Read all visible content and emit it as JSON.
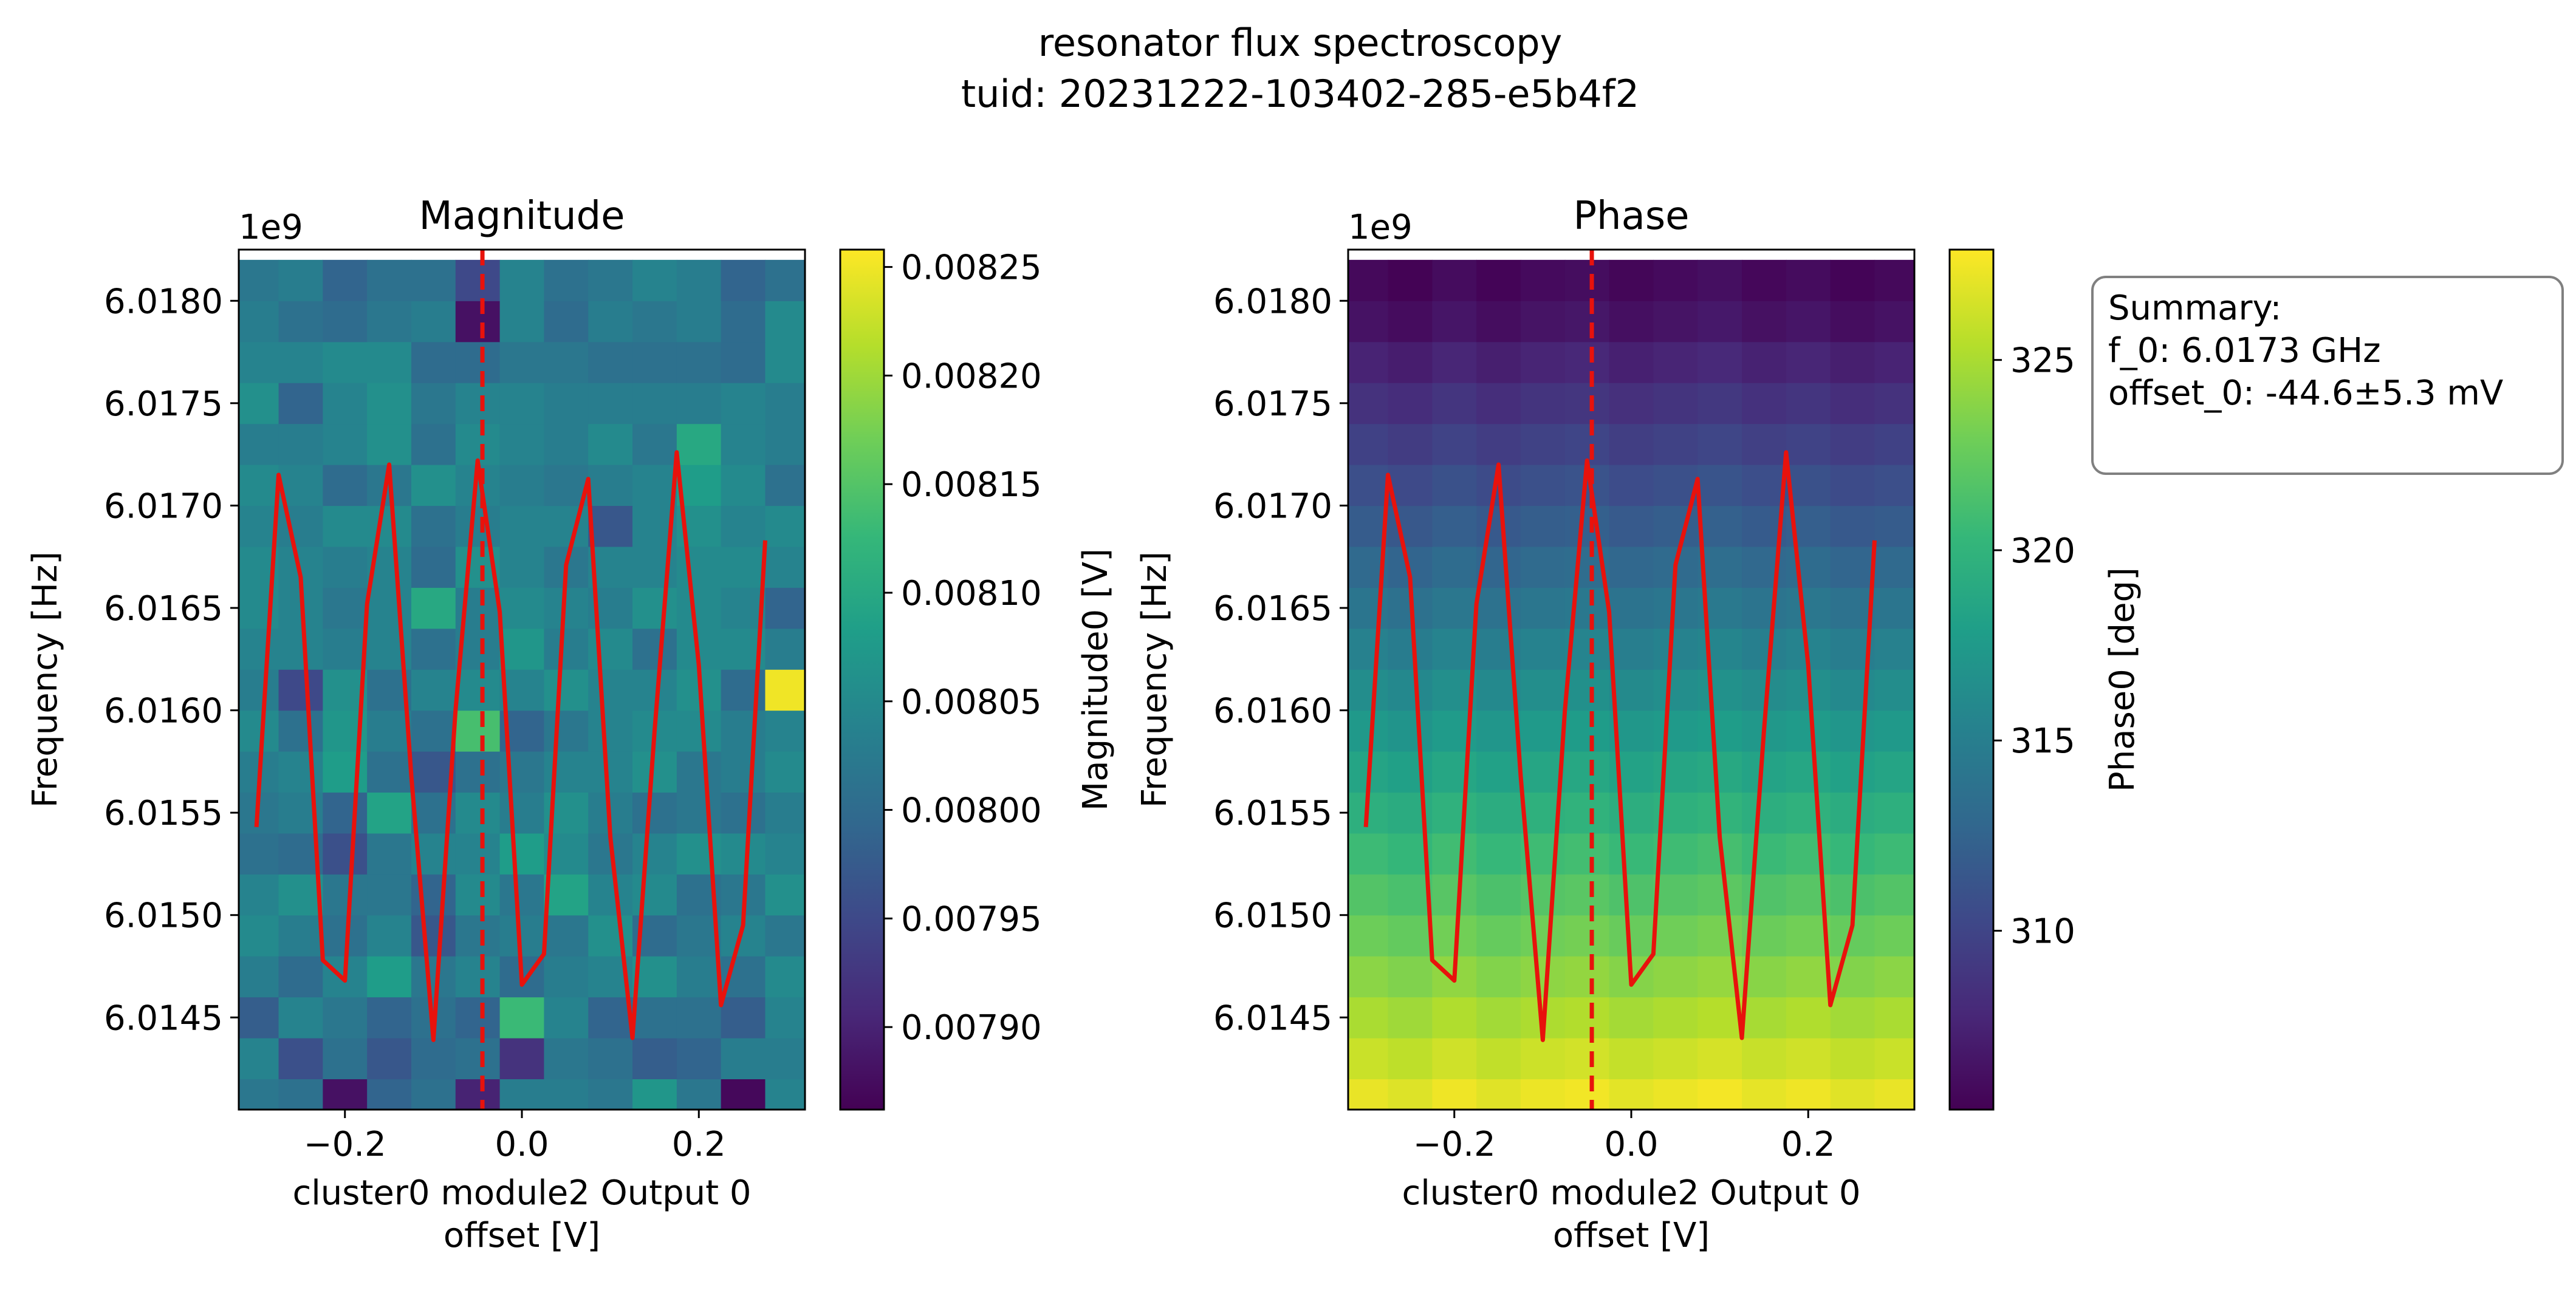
{
  "figure": {
    "title_line1": "resonator flux spectroscopy",
    "title_line2": "tuid: 20231222-103402-285-e5b4f2"
  },
  "summary": {
    "line1": "Summary:",
    "line2": "f_0: 6.0173 GHz",
    "line3": "offset_0: -44.6±5.3 mV"
  },
  "colors": {
    "fit_line": "#e8120c",
    "marker_line": "#e8120c",
    "viridis": [
      "#440154",
      "#482878",
      "#3e4989",
      "#31688e",
      "#26828e",
      "#1f9e89",
      "#35b779",
      "#6ece58",
      "#b5de2b",
      "#fde725"
    ]
  },
  "chart_data": [
    {
      "type": "heatmap",
      "title": "Magnitude",
      "xlabel_line1": "cluster0 module2 Output 0",
      "xlabel_line2": "offset [V]",
      "ylabel": "Frequency [Hz]",
      "y_offset_label": "1e9",
      "x_ticks": [
        "−0.2",
        "0.0",
        "0.2"
      ],
      "x_tick_values": [
        -0.2,
        0.0,
        0.2
      ],
      "y_ticks": [
        "6.0145",
        "6.0150",
        "6.0155",
        "6.0160",
        "6.0165",
        "6.0170",
        "6.0175",
        "6.0180"
      ],
      "y_tick_values": [
        6.0145,
        6.015,
        6.0155,
        6.016,
        6.0165,
        6.017,
        6.0175,
        6.018
      ],
      "xlim": [
        -0.32,
        0.32
      ],
      "ylim": [
        6.01405,
        6.01825
      ],
      "colorbar": {
        "label": "Magnitude0 [V]",
        "range": [
          0.007862,
          0.008258
        ],
        "ticks": [
          "0.00790",
          "0.00795",
          "0.00800",
          "0.00805",
          "0.00810",
          "0.00815",
          "0.00820",
          "0.00825"
        ],
        "tick_values": [
          0.0079,
          0.00795,
          0.008,
          0.00805,
          0.0081,
          0.00815,
          0.0082,
          0.00825
        ]
      },
      "grid": {
        "x_centers": [
          -0.3,
          -0.25,
          -0.2,
          -0.15,
          -0.1,
          -0.05,
          0.0,
          0.05,
          0.1,
          0.15,
          0.2,
          0.25,
          0.3
        ],
        "y_start": 6.0141,
        "y_step": 0.0002,
        "rows": 21,
        "note": "rows listed bottom (6.0141 GHz) to top"
      },
      "values": [
        [
          0.00802,
          0.00801,
          0.00788,
          0.00799,
          0.00801,
          0.0079,
          0.00803,
          0.00803,
          0.00802,
          0.00807,
          0.00802,
          0.00787,
          0.00804
        ],
        [
          0.00804,
          0.00796,
          0.00801,
          0.00797,
          0.008,
          0.00801,
          0.00792,
          0.00802,
          0.00801,
          0.00798,
          0.00799,
          0.00803,
          0.00803
        ],
        [
          0.00798,
          0.00804,
          0.00802,
          0.00799,
          0.00801,
          0.00799,
          0.00813,
          0.00804,
          0.00799,
          0.00801,
          0.00801,
          0.00798,
          0.00804
        ],
        [
          0.00803,
          0.008,
          0.00804,
          0.00808,
          0.00802,
          0.00804,
          0.008,
          0.00803,
          0.00804,
          0.00806,
          0.00803,
          0.00801,
          0.00805
        ],
        [
          0.00805,
          0.00803,
          0.00801,
          0.00804,
          0.00797,
          0.00802,
          0.00803,
          0.00802,
          0.00806,
          0.008,
          0.00802,
          0.00804,
          0.00802
        ],
        [
          0.00804,
          0.00806,
          0.00802,
          0.00802,
          0.00799,
          0.00805,
          0.00802,
          0.00809,
          0.00804,
          0.00805,
          0.00801,
          0.00802,
          0.00806
        ],
        [
          0.00801,
          0.008,
          0.00796,
          0.00802,
          0.00804,
          0.00804,
          0.00808,
          0.00805,
          0.00802,
          0.00804,
          0.00806,
          0.00805,
          0.00804
        ],
        [
          0.00802,
          0.00803,
          0.00799,
          0.00809,
          0.00801,
          0.00805,
          0.00803,
          0.00806,
          0.00803,
          0.00801,
          0.00802,
          0.00801,
          0.00803
        ],
        [
          0.00803,
          0.00804,
          0.00808,
          0.00801,
          0.00797,
          0.00801,
          0.00802,
          0.00804,
          0.00804,
          0.00806,
          0.00802,
          0.00803,
          0.00805
        ],
        [
          0.00805,
          0.00801,
          0.00807,
          0.00803,
          0.00801,
          0.00814,
          0.00799,
          0.00802,
          0.00804,
          0.00805,
          0.00805,
          0.00803,
          0.00804
        ],
        [
          0.00803,
          0.00795,
          0.00806,
          0.00801,
          0.00804,
          0.00805,
          0.00804,
          0.00806,
          0.00804,
          0.00804,
          0.00806,
          0.008,
          0.00825
        ],
        [
          0.00804,
          0.00804,
          0.00803,
          0.00804,
          0.00801,
          0.00803,
          0.00807,
          0.00803,
          0.00805,
          0.00801,
          0.00805,
          0.00805,
          0.00803
        ],
        [
          0.00805,
          0.00804,
          0.00802,
          0.00804,
          0.0081,
          0.00803,
          0.00805,
          0.00804,
          0.00803,
          0.00806,
          0.00805,
          0.00804,
          0.00799
        ],
        [
          0.00805,
          0.00804,
          0.00803,
          0.00804,
          0.008,
          0.00806,
          0.00804,
          0.00802,
          0.00804,
          0.00804,
          0.00805,
          0.00805,
          0.00804
        ],
        [
          0.00804,
          0.00803,
          0.00805,
          0.00805,
          0.00801,
          0.00803,
          0.00804,
          0.00804,
          0.00797,
          0.00804,
          0.00806,
          0.00804,
          0.00805
        ],
        [
          0.00805,
          0.00804,
          0.008,
          0.00802,
          0.00806,
          0.00804,
          0.00803,
          0.00802,
          0.00803,
          0.00804,
          0.00808,
          0.00805,
          0.00801
        ],
        [
          0.00803,
          0.00803,
          0.00804,
          0.00806,
          0.00801,
          0.00805,
          0.00804,
          0.00803,
          0.00805,
          0.00802,
          0.0081,
          0.00804,
          0.00803
        ],
        [
          0.00806,
          0.00799,
          0.00804,
          0.00806,
          0.00802,
          0.00804,
          0.00804,
          0.00803,
          0.00803,
          0.00803,
          0.00803,
          0.00804,
          0.00803
        ],
        [
          0.00804,
          0.00804,
          0.00805,
          0.00805,
          0.008,
          0.008,
          0.00802,
          0.00802,
          0.00801,
          0.00801,
          0.00801,
          0.008,
          0.00805
        ],
        [
          0.00803,
          0.00801,
          0.008,
          0.00802,
          0.00803,
          0.00788,
          0.00804,
          0.008,
          0.00803,
          0.00802,
          0.00803,
          0.008,
          0.00805
        ],
        [
          0.00802,
          0.00803,
          0.00799,
          0.00801,
          0.00801,
          0.00795,
          0.00804,
          0.00801,
          0.00802,
          0.00804,
          0.00803,
          0.00799,
          0.00801
        ]
      ],
      "fit": {
        "x": [
          -0.3,
          -0.275,
          -0.25,
          -0.225,
          -0.2,
          -0.175,
          -0.15,
          -0.125,
          -0.1,
          -0.075,
          -0.05,
          -0.025,
          0.0,
          0.025,
          0.05,
          0.075,
          0.1,
          0.125,
          0.15,
          0.175,
          0.2,
          0.225,
          0.25,
          0.275
        ],
        "y": [
          6.01543,
          6.01715,
          6.01665,
          6.01478,
          6.01468,
          6.01652,
          6.0172,
          6.01568,
          6.01439,
          6.016,
          6.01722,
          6.01648,
          6.01466,
          6.01481,
          6.01671,
          6.01713,
          6.01538,
          6.0144,
          6.0159,
          6.01726,
          6.01622,
          6.01456,
          6.01495,
          6.01683
        ]
      },
      "marker_x": -0.0446
    },
    {
      "type": "heatmap",
      "title": "Phase",
      "xlabel_line1": "cluster0 module2 Output 0",
      "xlabel_line2": "offset [V]",
      "ylabel": "Frequency [Hz]",
      "y_offset_label": "1e9",
      "x_ticks": [
        "−0.2",
        "0.0",
        "0.2"
      ],
      "x_tick_values": [
        -0.2,
        0.0,
        0.2
      ],
      "y_ticks": [
        "6.0145",
        "6.0150",
        "6.0155",
        "6.0160",
        "6.0165",
        "6.0170",
        "6.0175",
        "6.0180"
      ],
      "y_tick_values": [
        6.0145,
        6.015,
        6.0155,
        6.016,
        6.0165,
        6.017,
        6.0175,
        6.018
      ],
      "xlim": [
        -0.32,
        0.32
      ],
      "ylim": [
        6.01405,
        6.01825
      ],
      "colorbar": {
        "label": "Phase0 [deg]",
        "range": [
          305.3,
          327.9
        ],
        "ticks": [
          "310",
          "315",
          "320",
          "325"
        ],
        "tick_values": [
          310,
          315,
          320,
          325
        ]
      },
      "grid": {
        "x_centers": [
          -0.3,
          -0.25,
          -0.2,
          -0.15,
          -0.1,
          -0.05,
          0.0,
          0.05,
          0.1,
          0.15,
          0.2,
          0.25,
          0.3
        ],
        "y_start": 6.0141,
        "y_step": 0.0002,
        "rows": 21,
        "row_base_deg": [
          327.2,
          326.1,
          325.0,
          323.9,
          322.8,
          321.7,
          320.7,
          319.6,
          318.5,
          317.4,
          316.3,
          315.2,
          314.1,
          313.0,
          311.9,
          310.8,
          309.7,
          308.6,
          307.5,
          306.4,
          305.8
        ],
        "column_variation_deg": [
          0.0,
          -0.4,
          0.2,
          -0.3,
          0.1,
          0.3,
          -0.2,
          0.1,
          0.4,
          -0.1,
          0.2,
          -0.3,
          0.0
        ],
        "note": "rows listed bottom (6.0141 GHz) to top; cell value = row base + column variation"
      },
      "fit": {
        "x": [
          -0.3,
          -0.275,
          -0.25,
          -0.225,
          -0.2,
          -0.175,
          -0.15,
          -0.125,
          -0.1,
          -0.075,
          -0.05,
          -0.025,
          0.0,
          0.025,
          0.05,
          0.075,
          0.1,
          0.125,
          0.15,
          0.175,
          0.2,
          0.225,
          0.25,
          0.275
        ],
        "y": [
          6.01543,
          6.01715,
          6.01665,
          6.01478,
          6.01468,
          6.01652,
          6.0172,
          6.01568,
          6.01439,
          6.016,
          6.01722,
          6.01648,
          6.01466,
          6.01481,
          6.01671,
          6.01713,
          6.01538,
          6.0144,
          6.0159,
          6.01726,
          6.01622,
          6.01456,
          6.01495,
          6.01683
        ]
      },
      "marker_x": -0.0446
    }
  ]
}
